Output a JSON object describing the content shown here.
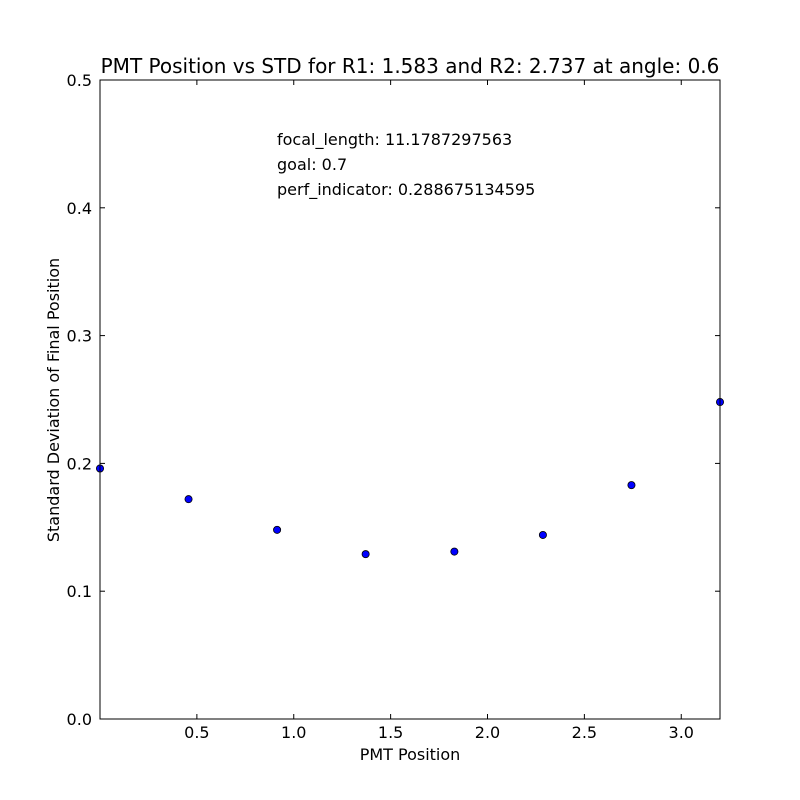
{
  "chart_data": {
    "type": "scatter",
    "title": "PMT Position vs STD for R1: 1.583 and R2: 2.737 at angle: 0.6",
    "xlabel": "PMT Position",
    "ylabel": "Standard Deviation of Final Position",
    "xlim": [
      0.0,
      3.2
    ],
    "ylim": [
      0.0,
      0.5
    ],
    "xticks": [
      0.5,
      1.0,
      1.5,
      2.0,
      2.5,
      3.0
    ],
    "xtick_labels": [
      "0.5",
      "1.0",
      "1.5",
      "2.0",
      "2.5",
      "3.0"
    ],
    "yticks": [
      0.0,
      0.1,
      0.2,
      0.3,
      0.4,
      0.5
    ],
    "ytick_labels": [
      "0.0",
      "0.1",
      "0.2",
      "0.3",
      "0.4",
      "0.5"
    ],
    "grid": false,
    "marker_color": "#0000ff",
    "series": [
      {
        "name": "std",
        "x": [
          0.0,
          0.457,
          0.914,
          1.371,
          1.829,
          2.286,
          2.743,
          3.2
        ],
        "y": [
          0.196,
          0.172,
          0.148,
          0.129,
          0.131,
          0.144,
          0.183,
          0.248
        ]
      }
    ],
    "annotations": [
      "focal_length: 11.1787297563",
      "goal: 0.7",
      "perf_indicator: 0.288675134595"
    ]
  }
}
